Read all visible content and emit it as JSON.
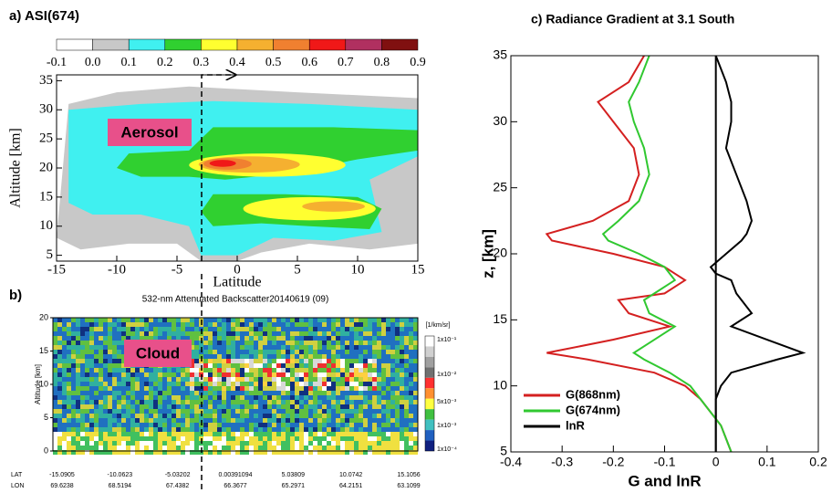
{
  "chart_data": [
    {
      "type": "contour",
      "title": "a) ASI(674)",
      "x_label": "Latitude",
      "y_label": "Altitude [km]",
      "xlim": [
        -15,
        15
      ],
      "xticks": [
        -15,
        -10,
        -5,
        0,
        5,
        10,
        15
      ],
      "ylim": [
        4,
        36
      ],
      "yticks": [
        5,
        10,
        15,
        20,
        25,
        30,
        35
      ],
      "colorbar_ticks": [
        -0.1,
        {
          "value": 0,
          "label": "0.0"
        },
        0.1,
        0.2,
        0.3,
        0.4,
        0.5,
        0.6,
        0.7,
        0.8,
        0.9
      ],
      "level_colors": [
        "#ffffff",
        "#c8c8c8",
        "#40f0f0",
        "#30d030",
        "#ffff30",
        "#f5b030",
        "#f08030",
        "#f01818",
        "#b03060",
        "#801010"
      ],
      "annotation": "Aerosol"
    },
    {
      "type": "image",
      "panel_label": "b)",
      "title": "532-nm Attenuated Backscatter20140619 (09)",
      "y_label": "Altitude [km]",
      "ylim": [
        0,
        20
      ],
      "yticks": [
        0,
        5,
        10,
        15,
        20
      ],
      "row_labels": [
        "LAT",
        "LON"
      ],
      "lat_labels": [
        "-15.0905",
        "-10.0623",
        "-5.03202",
        "0.00391094",
        "5.03809",
        "10.0742",
        "15.1056"
      ],
      "lon_labels": [
        "69.6238",
        "68.5194",
        "67.4382",
        "66.3677",
        "65.2971",
        "64.2151",
        "63.1099"
      ],
      "colorbar_unit": "[1/km/sr]",
      "colorbar_labels": [
        "1x10⁻¹",
        "1x10⁻²",
        "5x10⁻³",
        "1x10⁻³",
        "1x10⁻⁴"
      ],
      "annotation": "Cloud"
    },
    {
      "type": "line",
      "title": "c) Radiance Gradient at 3.1 South",
      "x_label": "G and lnR",
      "y_label": "z, [km]",
      "xlim": [
        -0.4,
        0.2
      ],
      "xticks": [
        -0.4,
        -0.3,
        -0.2,
        -0.1,
        0,
        0.1,
        0.2
      ],
      "ylim": [
        5,
        35
      ],
      "yticks": [
        5,
        10,
        15,
        20,
        25,
        30,
        35
      ],
      "y": [
        35,
        33,
        31.5,
        30,
        28,
        26,
        24,
        22.5,
        21.5,
        21,
        20,
        19,
        18.5,
        18,
        17,
        16.5,
        15.5,
        14.5,
        13.5,
        12.5,
        12,
        11,
        10,
        9,
        8,
        7,
        6,
        5
      ],
      "legend": "lower left",
      "series": [
        {
          "name": "G(868nm)",
          "color": "#d42020",
          "values": [
            -0.14,
            -0.17,
            -0.23,
            -0.2,
            -0.16,
            -0.15,
            -0.17,
            -0.24,
            -0.33,
            -0.32,
            -0.2,
            -0.1,
            -0.08,
            -0.06,
            -0.1,
            -0.19,
            -0.17,
            -0.09,
            -0.2,
            -0.33,
            -0.25,
            -0.12,
            -0.06,
            -0.03,
            -0.01,
            0.01,
            0.02,
            0.03
          ]
        },
        {
          "name": "G(674nm)",
          "color": "#30c830",
          "values": [
            -0.13,
            -0.15,
            -0.17,
            -0.16,
            -0.14,
            -0.13,
            -0.15,
            -0.19,
            -0.22,
            -0.21,
            -0.15,
            -0.1,
            -0.09,
            -0.08,
            -0.12,
            -0.14,
            -0.13,
            -0.08,
            -0.12,
            -0.16,
            -0.14,
            -0.09,
            -0.05,
            -0.03,
            -0.01,
            0.01,
            0.02,
            0.03
          ]
        },
        {
          "name": "lnR",
          "color": "#000000",
          "values": [
            0,
            0.02,
            0.03,
            0.03,
            0.02,
            0.04,
            0.06,
            0.07,
            0.06,
            0.05,
            0.02,
            -0.01,
            0,
            0.03,
            0.04,
            0.05,
            0.07,
            0.03,
            0.1,
            0.17,
            0.12,
            0.03,
            0.01,
            0,
            0,
            0,
            0,
            0
          ]
        }
      ]
    }
  ]
}
